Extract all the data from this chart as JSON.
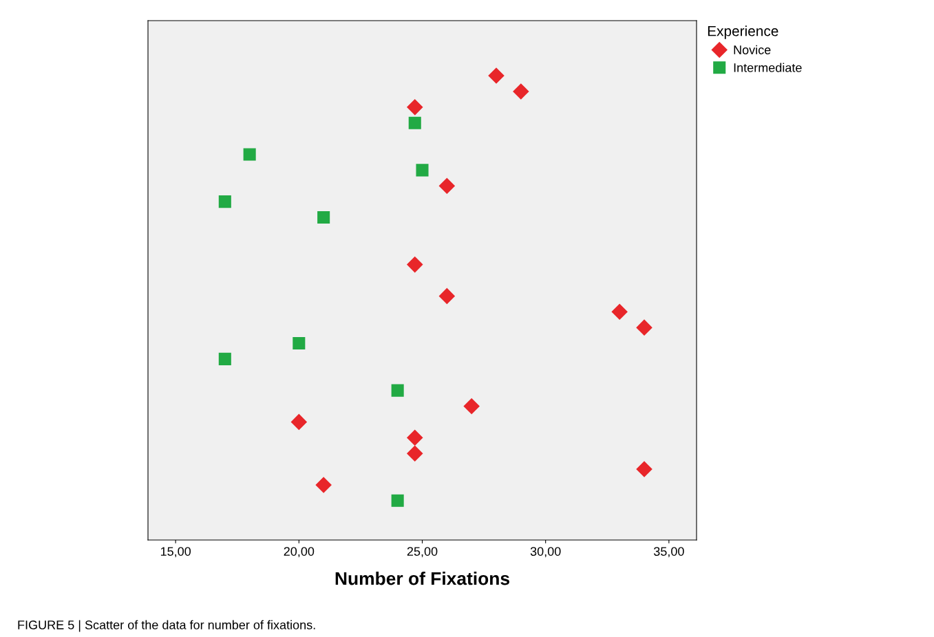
{
  "chart_data": {
    "type": "scatter",
    "orientation": "horizontal",
    "xlabel": "Number of Fixations",
    "legend_title": "Experience",
    "legend": "top right",
    "grid": false,
    "categories": [
      null,
      null,
      null,
      null,
      null,
      null,
      null,
      null,
      null,
      null,
      null,
      null,
      null,
      null,
      null,
      null,
      null,
      null,
      null,
      null,
      null,
      null,
      null,
      null,
      null,
      null,
      null,
      null,
      null,
      null,
      null,
      null,
      null
    ],
    "series": [
      {
        "name": "Novice",
        "color": "#e8262a",
        "marker": "diamond",
        "values": [
          null,
          null,
          null,
          28,
          29,
          24.7,
          null,
          null,
          null,
          null,
          26,
          null,
          null,
          null,
          null,
          24.7,
          null,
          26,
          33,
          34,
          null,
          null,
          null,
          null,
          27,
          20,
          24.7,
          24.7,
          34,
          21,
          null,
          null,
          null
        ]
      },
      {
        "name": "Intermediate",
        "color": "#22aa44",
        "marker": "square",
        "values": [
          null,
          null,
          null,
          null,
          null,
          null,
          24.7,
          null,
          18,
          25,
          null,
          17,
          21,
          null,
          null,
          null,
          null,
          null,
          null,
          null,
          20,
          17,
          null,
          24,
          null,
          null,
          null,
          null,
          null,
          null,
          24,
          null,
          null
        ]
      }
    ],
    "xlim": [
      13.88,
      36.12
    ],
    "xticks": [
      {
        "value": 15,
        "label": "15,00"
      },
      {
        "value": 20,
        "label": "20,00"
      },
      {
        "value": 25,
        "label": "25,00"
      },
      {
        "value": 30,
        "label": "30,00"
      },
      {
        "value": 35,
        "label": "35,00"
      }
    ],
    "annotations": [
      "FIGURE 5 | Scatter of the data for number of fixations."
    ]
  }
}
